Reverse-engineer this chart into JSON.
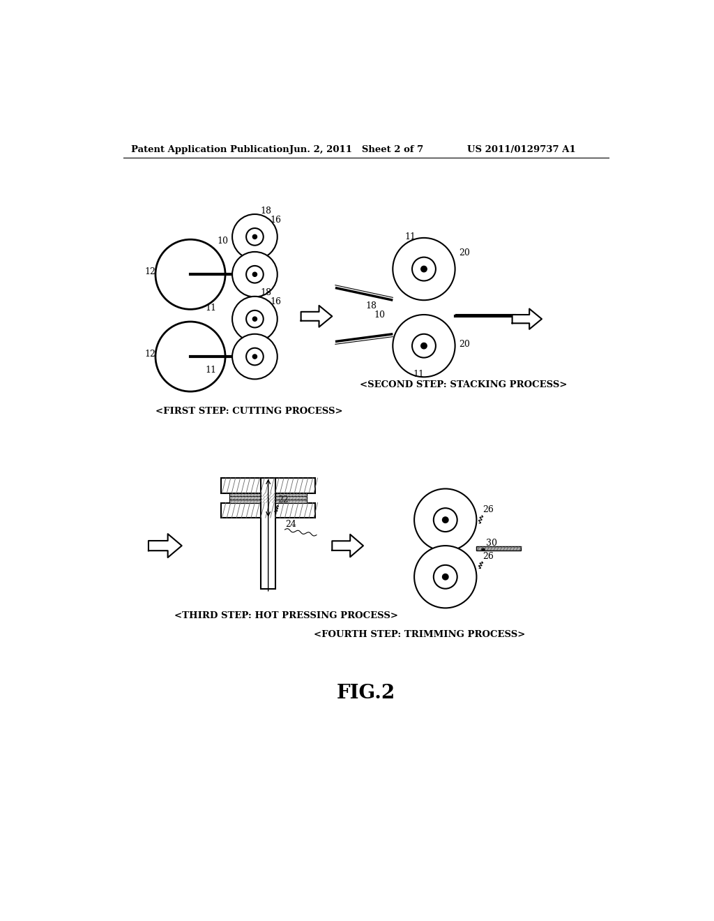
{
  "header_left": "Patent Application Publication",
  "header_mid": "Jun. 2, 2011   Sheet 2 of 7",
  "header_right": "US 2011/0129737 A1",
  "fig_label": "FIG.2",
  "label_first_step": "<FIRST STEP: CUTTING PROCESS>",
  "label_second_step": "<SECOND STEP: STACKING PROCESS>",
  "label_third_step": "<THIRD STEP: HOT PRESSING PROCESS>",
  "label_fourth_step": "<FOURTH STEP: TRIMMING PROCESS>",
  "bg_color": "#ffffff",
  "line_color": "#000000"
}
